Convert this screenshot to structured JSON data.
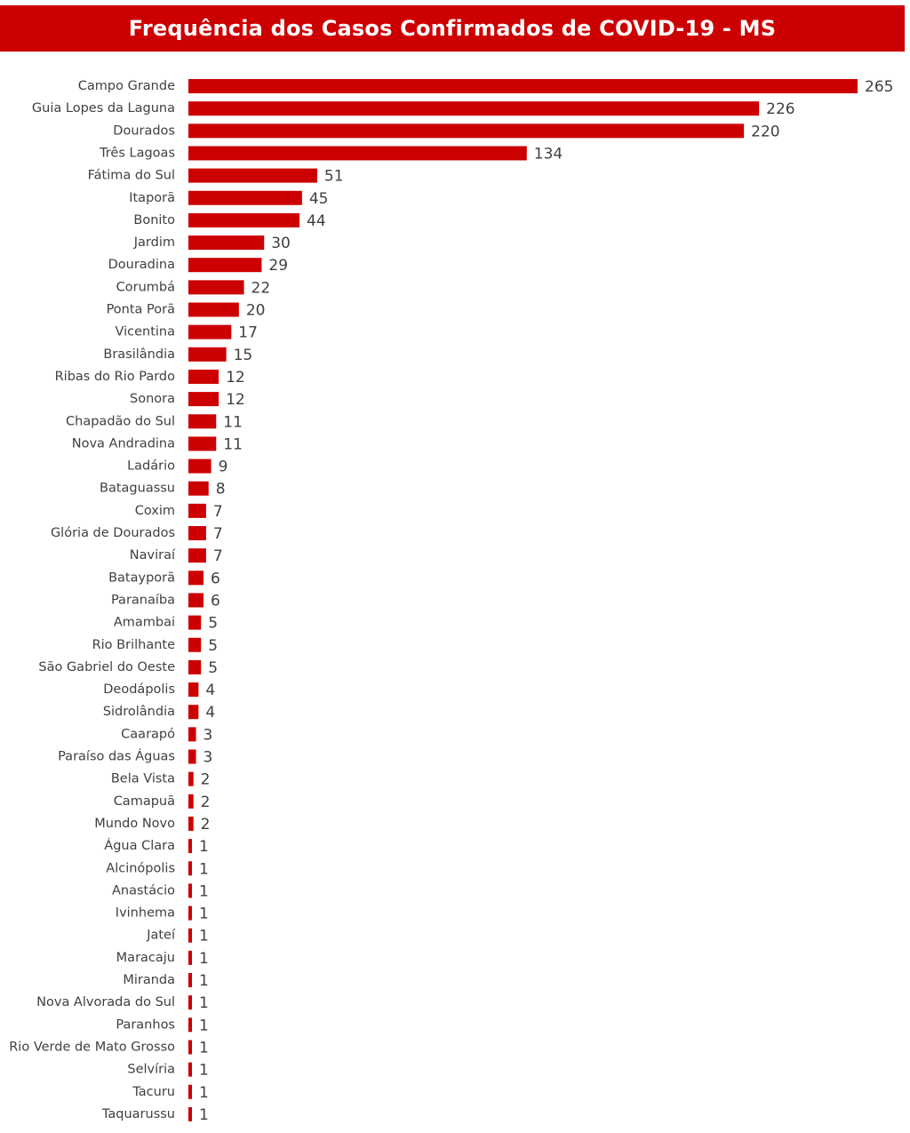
{
  "chart_data": {
    "type": "bar",
    "orientation": "horizontal",
    "title": "Frequência dos Casos Confirmados de COVID-19 - MS",
    "xlabel": "",
    "ylabel": "",
    "grid": false,
    "legend": "none",
    "categories": [
      "Campo Grande",
      "Guia Lopes da Laguna",
      "Dourados",
      "Três Lagoas",
      "Fátima do Sul",
      "Itaporã",
      "Bonito",
      "Jardim",
      "Douradina",
      "Corumbá",
      "Ponta Porã",
      "Vicentina",
      "Brasilândia",
      "Ribas do Rio Pardo",
      "Sonora",
      "Chapadão do Sul",
      "Nova Andradina",
      "Ladário",
      "Bataguassu",
      "Coxim",
      "Glória de Dourados",
      "Naviraí",
      "Batayporã",
      "Paranaíba",
      "Amambai",
      "Rio Brilhante",
      "São Gabriel do Oeste",
      "Deodápolis",
      "Sidrolândia",
      "Caarapó",
      "Paraíso das Águas",
      "Bela Vista",
      "Camapuã",
      "Mundo Novo",
      "Água Clara",
      "Alcinópolis",
      "Anastácio",
      "Ivinhema",
      "Jateí",
      "Maracaju",
      "Miranda",
      "Nova Alvorada do Sul",
      "Paranhos",
      "Rio Verde de Mato Grosso",
      "Selvíria",
      "Tacuru",
      "Taquarussu"
    ],
    "values": [
      265,
      226,
      220,
      134,
      51,
      45,
      44,
      30,
      29,
      22,
      20,
      17,
      15,
      12,
      12,
      11,
      11,
      9,
      8,
      7,
      7,
      7,
      6,
      6,
      5,
      5,
      5,
      4,
      4,
      3,
      3,
      2,
      2,
      2,
      1,
      1,
      1,
      1,
      1,
      1,
      1,
      1,
      1,
      1,
      1,
      1,
      1
    ],
    "xlim": [
      0,
      265
    ],
    "colors": {
      "bar": "#cc0000",
      "title_background": "#cc0000",
      "title_text": "#ffffff",
      "label_text": "#404040"
    }
  }
}
